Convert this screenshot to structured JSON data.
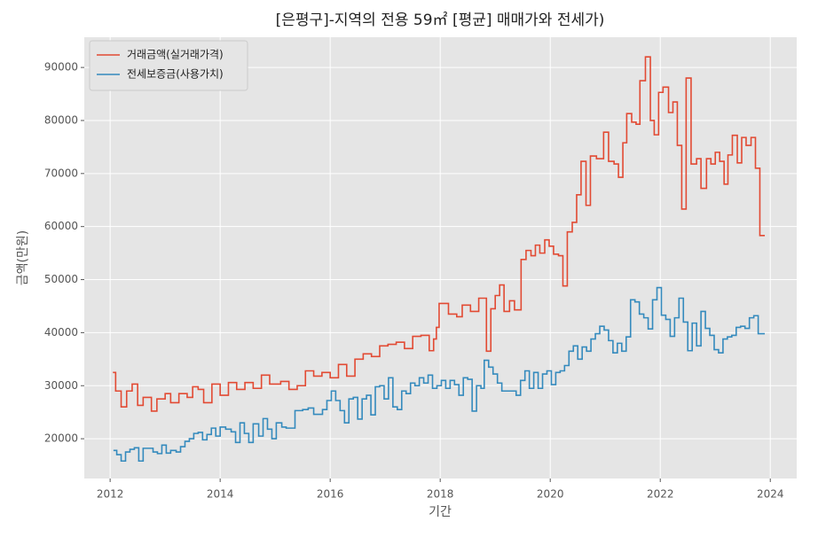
{
  "chart_data": {
    "type": "line",
    "step": "post",
    "title": "[은평구]-지역의 전용 59㎡ [평균] 매매가와 전세가)",
    "xlabel": "기간",
    "ylabel": "금액(만원)",
    "xlim": [
      2011.53,
      2024.48
    ],
    "xticks": [
      2012,
      2014,
      2016,
      2018,
      2020,
      2022,
      2024
    ],
    "ylim": [
      12500,
      95700
    ],
    "yticks": [
      20000,
      30000,
      40000,
      50000,
      60000,
      70000,
      80000,
      90000
    ],
    "grid": true,
    "legend": "upper left",
    "series": [
      {
        "name": "거래금액(실거래가격)",
        "color": "#e24a33",
        "x": [
          2012.05,
          2012.1,
          2012.2,
          2012.3,
          2012.4,
          2012.5,
          2012.6,
          2012.75,
          2012.85,
          2013.0,
          2013.1,
          2013.25,
          2013.4,
          2013.5,
          2013.6,
          2013.7,
          2013.85,
          2014.0,
          2014.15,
          2014.3,
          2014.45,
          2014.6,
          2014.75,
          2014.9,
          2015.1,
          2015.25,
          2015.4,
          2015.55,
          2015.7,
          2015.85,
          2016.0,
          2016.15,
          2016.3,
          2016.45,
          2016.6,
          2016.75,
          2016.9,
          2017.05,
          2017.2,
          2017.35,
          2017.5,
          2017.65,
          2017.8,
          2017.88,
          2017.93,
          2017.98,
          2018.15,
          2018.3,
          2018.4,
          2018.55,
          2018.7,
          2018.84,
          2018.92,
          2019.0,
          2019.08,
          2019.16,
          2019.26,
          2019.35,
          2019.47,
          2019.56,
          2019.65,
          2019.73,
          2019.81,
          2019.9,
          2019.98,
          2020.06,
          2020.15,
          2020.23,
          2020.31,
          2020.4,
          2020.48,
          2020.56,
          2020.65,
          2020.73,
          2020.84,
          2020.97,
          2021.06,
          2021.16,
          2021.24,
          2021.32,
          2021.39,
          2021.48,
          2021.56,
          2021.63,
          2021.73,
          2021.82,
          2021.89,
          2021.97,
          2022.05,
          2022.15,
          2022.23,
          2022.31,
          2022.39,
          2022.47,
          2022.56,
          2022.66,
          2022.74,
          2022.84,
          2022.92,
          2023.0,
          2023.08,
          2023.16,
          2023.23,
          2023.31,
          2023.4,
          2023.48,
          2023.56,
          2023.65,
          2023.73,
          2023.81,
          2023.9
        ],
        "values": [
          32500,
          29000,
          26000,
          29000,
          30300,
          26300,
          27800,
          25200,
          27500,
          28500,
          26800,
          28500,
          27800,
          29800,
          29300,
          26800,
          30300,
          28200,
          30600,
          29300,
          30600,
          29500,
          32000,
          30300,
          30800,
          29300,
          30000,
          32800,
          31800,
          32500,
          31500,
          34000,
          31800,
          35000,
          36000,
          35500,
          37500,
          37800,
          38200,
          37000,
          39300,
          39500,
          36600,
          38800,
          41000,
          45500,
          43500,
          43000,
          45200,
          44000,
          46500,
          36500,
          44500,
          47000,
          49000,
          44000,
          46000,
          44300,
          53800,
          55500,
          54500,
          56500,
          55000,
          57500,
          56300,
          54800,
          54500,
          48800,
          59000,
          60800,
          66000,
          72300,
          64000,
          73300,
          72800,
          77800,
          72300,
          71800,
          69300,
          75800,
          81300,
          79700,
          79300,
          87500,
          92000,
          80000,
          77300,
          85300,
          86300,
          81500,
          83500,
          75300,
          63300,
          88000,
          71800,
          72800,
          67200,
          72800,
          71800,
          74000,
          72300,
          68000,
          73500,
          77200,
          72000,
          76800,
          75300,
          76800,
          71000,
          58300,
          58300
        ]
      },
      {
        "name": "전세보증금(사용가치)",
        "color": "#348abd",
        "x": [
          2012.06,
          2012.12,
          2012.2,
          2012.28,
          2012.36,
          2012.44,
          2012.52,
          2012.6,
          2012.7,
          2012.78,
          2012.86,
          2012.94,
          2013.02,
          2013.1,
          2013.2,
          2013.28,
          2013.36,
          2013.44,
          2013.52,
          2013.6,
          2013.68,
          2013.76,
          2013.84,
          2013.92,
          2014.0,
          2014.1,
          2014.2,
          2014.28,
          2014.36,
          2014.44,
          2014.52,
          2014.6,
          2014.7,
          2014.78,
          2014.86,
          2014.94,
          2015.02,
          2015.12,
          2015.2,
          2015.36,
          2015.5,
          2015.6,
          2015.7,
          2015.86,
          2015.94,
          2016.02,
          2016.1,
          2016.18,
          2016.26,
          2016.34,
          2016.42,
          2016.5,
          2016.58,
          2016.66,
          2016.74,
          2016.82,
          2016.9,
          2016.98,
          2017.06,
          2017.14,
          2017.22,
          2017.3,
          2017.38,
          2017.46,
          2017.54,
          2017.62,
          2017.7,
          2017.78,
          2017.86,
          2017.94,
          2018.02,
          2018.1,
          2018.18,
          2018.26,
          2018.34,
          2018.42,
          2018.5,
          2018.58,
          2018.66,
          2018.74,
          2018.8,
          2018.88,
          2018.96,
          2019.04,
          2019.12,
          2019.3,
          2019.38,
          2019.46,
          2019.54,
          2019.62,
          2019.7,
          2019.78,
          2019.86,
          2019.94,
          2020.02,
          2020.1,
          2020.18,
          2020.26,
          2020.34,
          2020.42,
          2020.5,
          2020.58,
          2020.66,
          2020.74,
          2020.82,
          2020.9,
          2020.98,
          2021.06,
          2021.14,
          2021.22,
          2021.3,
          2021.38,
          2021.46,
          2021.54,
          2021.62,
          2021.7,
          2021.78,
          2021.86,
          2021.94,
          2022.02,
          2022.1,
          2022.18,
          2022.26,
          2022.34,
          2022.42,
          2022.5,
          2022.58,
          2022.66,
          2022.74,
          2022.82,
          2022.9,
          2022.98,
          2023.06,
          2023.14,
          2023.22,
          2023.3,
          2023.38,
          2023.46,
          2023.54,
          2023.62,
          2023.7,
          2023.78,
          2023.9
        ],
        "values": [
          17800,
          17000,
          15800,
          17500,
          18000,
          18300,
          15800,
          18200,
          18200,
          17500,
          17200,
          18800,
          17300,
          17800,
          17500,
          18500,
          19500,
          20000,
          21000,
          21200,
          19800,
          20800,
          22000,
          20500,
          22200,
          21800,
          21300,
          19300,
          23000,
          21000,
          19300,
          22800,
          20500,
          23800,
          21800,
          20000,
          23000,
          22200,
          22000,
          25300,
          25500,
          25800,
          24600,
          25500,
          27200,
          29000,
          27200,
          25300,
          23000,
          27500,
          27800,
          23700,
          27500,
          28200,
          24500,
          29800,
          30000,
          27500,
          31500,
          26000,
          25500,
          29000,
          28500,
          30500,
          30000,
          31500,
          30500,
          32000,
          29500,
          30000,
          31000,
          29500,
          31000,
          30200,
          28200,
          31500,
          31200,
          25200,
          30000,
          29500,
          34800,
          33500,
          32200,
          30500,
          29000,
          29000,
          28200,
          31000,
          32800,
          29500,
          32500,
          29500,
          32200,
          32800,
          30200,
          32500,
          32800,
          33800,
          36500,
          37500,
          35000,
          37300,
          36500,
          38800,
          39800,
          41200,
          40500,
          38500,
          36200,
          38000,
          36500,
          39200,
          46200,
          45800,
          43500,
          42800,
          40700,
          46200,
          48500,
          43300,
          42500,
          39300,
          42800,
          46500,
          42000,
          36600,
          41800,
          37500,
          44000,
          40800,
          39500,
          36800,
          36200,
          38800,
          39200,
          39500,
          41000,
          41200,
          40800,
          42800,
          43200,
          39800,
          39800
        ]
      }
    ]
  }
}
